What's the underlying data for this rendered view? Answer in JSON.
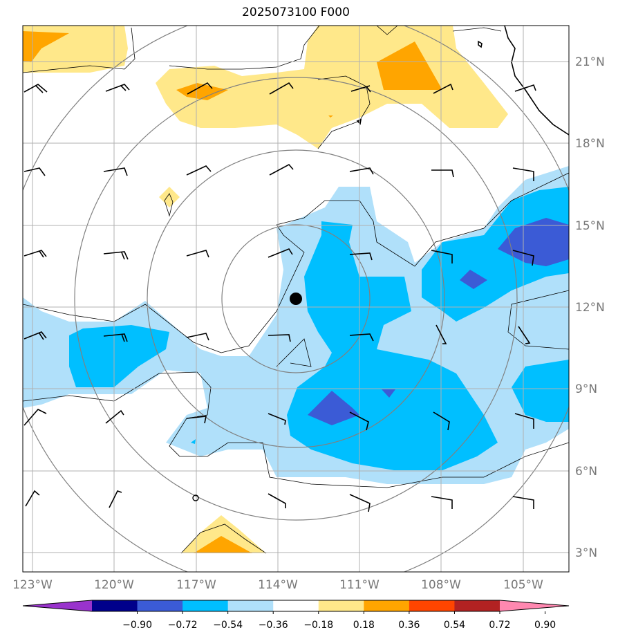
{
  "title": "2025073100 F000",
  "map": {
    "lon_labels": [
      "123°W",
      "120°W",
      "117°W",
      "114°W",
      "111°W",
      "108°W",
      "105°W"
    ],
    "lat_labels": [
      "21°N",
      "18°N",
      "15°N",
      "12°N",
      "9°N",
      "6°N",
      "3°N"
    ],
    "gridlines": true,
    "center_marker": "filled-dot",
    "features": [
      "coastline",
      "wind-barbs",
      "range-rings",
      "shaded-anomaly",
      "contour-lines"
    ]
  },
  "colorbar": {
    "ticks": [
      "−0.90",
      "−0.72",
      "−0.54",
      "−0.36",
      "−0.18",
      "0.18",
      "0.36",
      "0.54",
      "0.72",
      "0.90"
    ],
    "colors": [
      "#9933cc",
      "#00008b",
      "#3b5bd6",
      "#00bfff",
      "#b0e0fa",
      "#ffffff",
      "#ffe88a",
      "#ffa500",
      "#ff4500",
      "#b22222",
      "#ff88b0"
    ],
    "extend": "both"
  }
}
